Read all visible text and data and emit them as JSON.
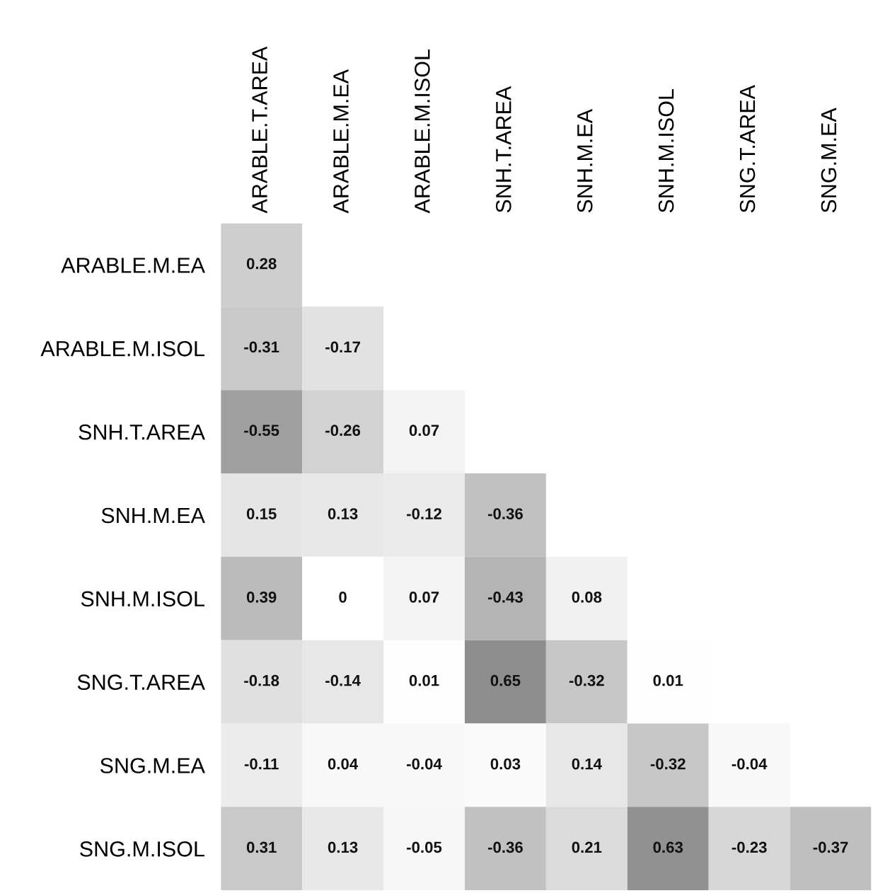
{
  "chart_data": {
    "type": "heatmap",
    "categories": [
      "ARABLE.T.AREA",
      "ARABLE.M.EA",
      "ARABLE.M.ISOL",
      "SNH.T.AREA",
      "SNH.M.EA",
      "SNH.M.ISOL",
      "SNG.T.AREA",
      "SNG.M.EA"
    ],
    "y_categories": [
      "ARABLE.M.EA",
      "ARABLE.M.ISOL",
      "SNH.T.AREA",
      "SNH.M.EA",
      "SNH.M.ISOL",
      "SNG.T.AREA",
      "SNG.M.EA",
      "SNG.M.ISOL"
    ],
    "cells": [
      [
        0.28,
        null,
        null,
        null,
        null,
        null,
        null,
        null
      ],
      [
        -0.31,
        -0.17,
        null,
        null,
        null,
        null,
        null,
        null
      ],
      [
        -0.55,
        -0.26,
        0.07,
        null,
        null,
        null,
        null,
        null
      ],
      [
        0.15,
        0.13,
        -0.12,
        -0.36,
        null,
        null,
        null,
        null
      ],
      [
        0.39,
        0,
        0.07,
        -0.43,
        0.08,
        null,
        null,
        null
      ],
      [
        -0.18,
        -0.14,
        0.01,
        0.65,
        -0.32,
        0.01,
        null,
        null
      ],
      [
        -0.11,
        0.04,
        -0.04,
        0.03,
        0.14,
        -0.32,
        -0.04,
        null
      ],
      [
        0.31,
        0.13,
        -0.05,
        -0.36,
        0.21,
        0.63,
        -0.23,
        -0.37
      ]
    ],
    "data_labels": true
  }
}
